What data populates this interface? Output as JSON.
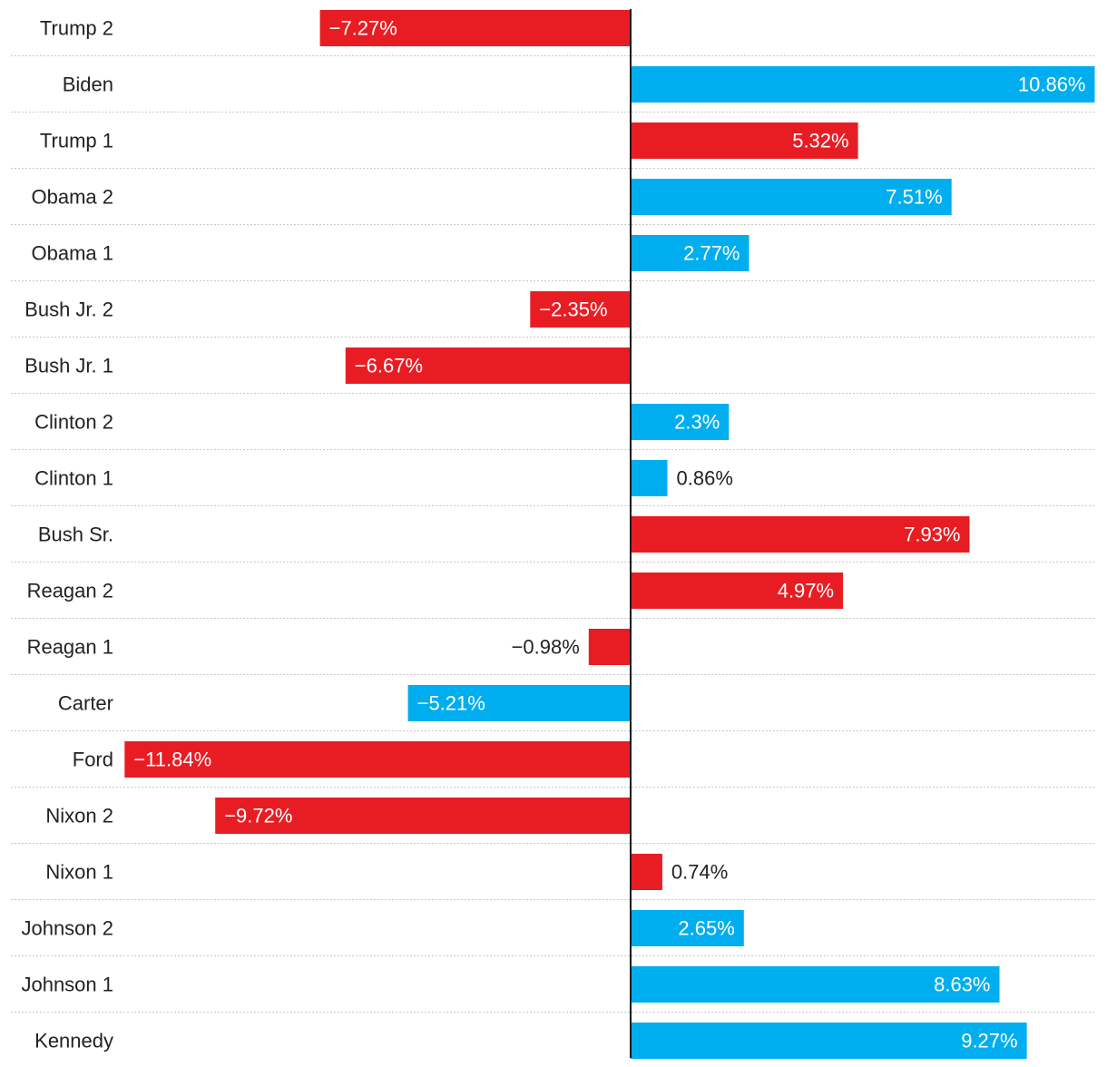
{
  "chart_data": {
    "type": "bar",
    "orientation": "horizontal",
    "title": "",
    "xlabel": "",
    "ylabel": "",
    "xlim": [
      -12.5,
      11
    ],
    "grid": true,
    "categories": [
      "Trump 2",
      "Biden",
      "Trump 1",
      "Obama 2",
      "Obama 1",
      "Bush Jr. 2",
      "Bush Jr. 1",
      "Clinton 2",
      "Clinton 1",
      "Bush Sr.",
      "Reagan 2",
      "Reagan 1",
      "Carter",
      "Ford",
      "Nixon 2",
      "Nixon 1",
      "Johnson 2",
      "Johnson 1",
      "Kennedy"
    ],
    "values": [
      -7.27,
      10.86,
      5.32,
      7.51,
      2.77,
      -2.35,
      -6.67,
      2.3,
      0.86,
      7.93,
      4.97,
      -0.98,
      -5.21,
      -11.84,
      -9.72,
      0.74,
      2.65,
      8.63,
      9.27
    ],
    "value_labels": [
      "−7.27%",
      "10.86%",
      "5.32%",
      "7.51%",
      "2.77%",
      "−2.35%",
      "−6.67%",
      "2.3%",
      "0.86%",
      "7.93%",
      "4.97%",
      "−0.98%",
      "−5.21%",
      "−11.84%",
      "−9.72%",
      "0.74%",
      "2.65%",
      "8.63%",
      "9.27%"
    ],
    "party": [
      "republican",
      "democrat",
      "republican",
      "democrat",
      "democrat",
      "republican",
      "republican",
      "democrat",
      "democrat",
      "republican",
      "republican",
      "republican",
      "democrat",
      "republican",
      "republican",
      "republican",
      "democrat",
      "democrat",
      "democrat"
    ],
    "colors": {
      "republican": "#e81d24",
      "democrat": "#00aeef",
      "label_inside": "#ffffff",
      "label_outside": "#222222"
    }
  }
}
